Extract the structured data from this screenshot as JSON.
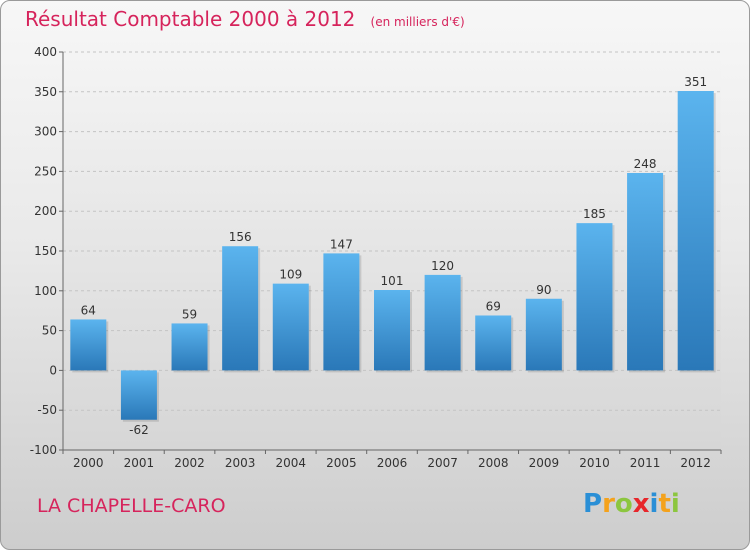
{
  "title": "Résultat Comptable 2000 à 2012",
  "subtitle": "(en milliers d'€)",
  "city": "LA CHAPELLE-CARO",
  "logo": {
    "letters": [
      "P",
      "r",
      "o",
      "x",
      "i",
      "t",
      "i"
    ],
    "colors": [
      "#2a8fd6",
      "#f4a21c",
      "#8cc63f",
      "#e7262b",
      "#2a8fd6",
      "#f4a21c",
      "#8cc63f"
    ]
  },
  "colors": {
    "bar_top": "#5bb4ee",
    "bar_bottom": "#2a78b8",
    "title": "#d6245c",
    "text": "#333333"
  },
  "chart_data": {
    "type": "bar",
    "title": "Résultat Comptable 2000 à 2012",
    "xlabel": "",
    "ylabel": "",
    "categories": [
      "2000",
      "2001",
      "2002",
      "2003",
      "2004",
      "2005",
      "2006",
      "2007",
      "2008",
      "2009",
      "2010",
      "2011",
      "2012"
    ],
    "values": [
      64,
      -62,
      59,
      156,
      109,
      147,
      101,
      120,
      69,
      90,
      185,
      248,
      351
    ],
    "ylim": [
      -100,
      400
    ],
    "yticks": [
      -100,
      -50,
      0,
      50,
      100,
      150,
      200,
      250,
      300,
      350,
      400
    ],
    "grid": true
  }
}
